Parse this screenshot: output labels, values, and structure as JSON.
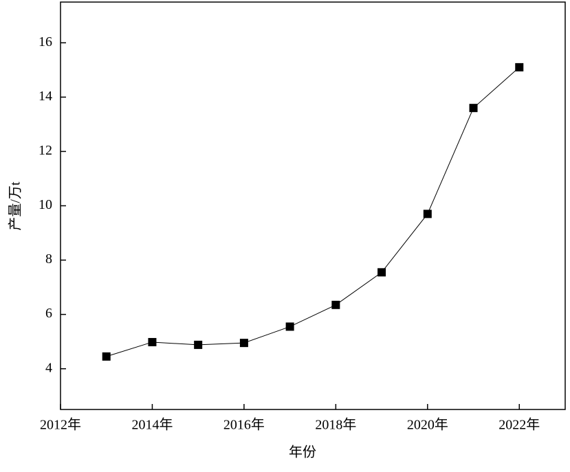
{
  "chart_data": {
    "type": "line",
    "x": [
      2013,
      2014,
      2015,
      2016,
      2017,
      2018,
      2019,
      2020,
      2021,
      2022
    ],
    "series": [
      {
        "color": "#000000",
        "values": [
          4.45,
          4.98,
          4.88,
          4.95,
          5.55,
          6.35,
          7.55,
          9.7,
          13.6,
          15.1
        ]
      }
    ],
    "xlim": [
      2012,
      2023
    ],
    "xticks": [
      {
        "value": 2012,
        "label": "2012年"
      },
      {
        "value": 2014,
        "label": "2014年"
      },
      {
        "value": 2016,
        "label": "2016年"
      },
      {
        "value": 2018,
        "label": "2018年"
      },
      {
        "value": 2020,
        "label": "2020年"
      },
      {
        "value": 2022,
        "label": "2022年"
      }
    ],
    "ylim": [
      2.5,
      17.5
    ],
    "yticks": [
      4,
      6,
      8,
      10,
      12,
      14,
      16
    ],
    "xlabel": "年份",
    "ylabel": "产量/万t",
    "grid": false
  }
}
